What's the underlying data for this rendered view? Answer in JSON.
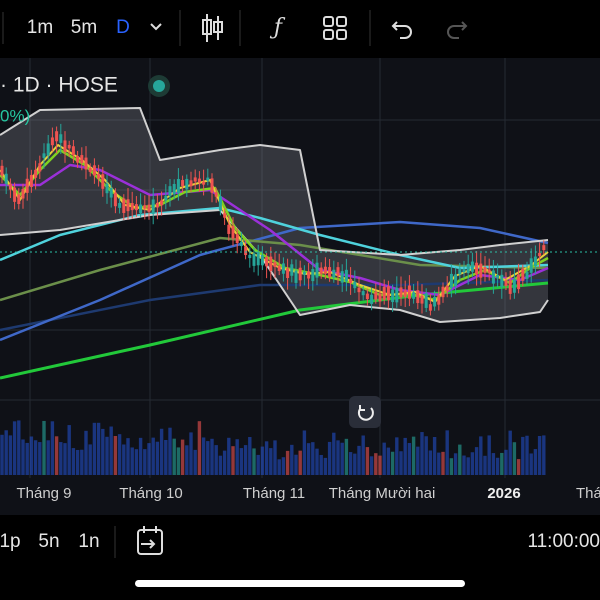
{
  "toolbar": {
    "intervals": [
      "1m",
      "5m",
      "D"
    ]
  },
  "chart": {
    "symbol_label": "· 1D · HOSE",
    "change_label": "0%)",
    "x_labels": [
      "Tháng 9",
      "Tháng 10",
      "Tháng 11",
      "Tháng Mười hai",
      "2026",
      "Thá"
    ]
  },
  "bottom_bar": {
    "ranges": [
      "1p",
      "5n",
      "1n"
    ],
    "time": "11:00:00"
  }
}
